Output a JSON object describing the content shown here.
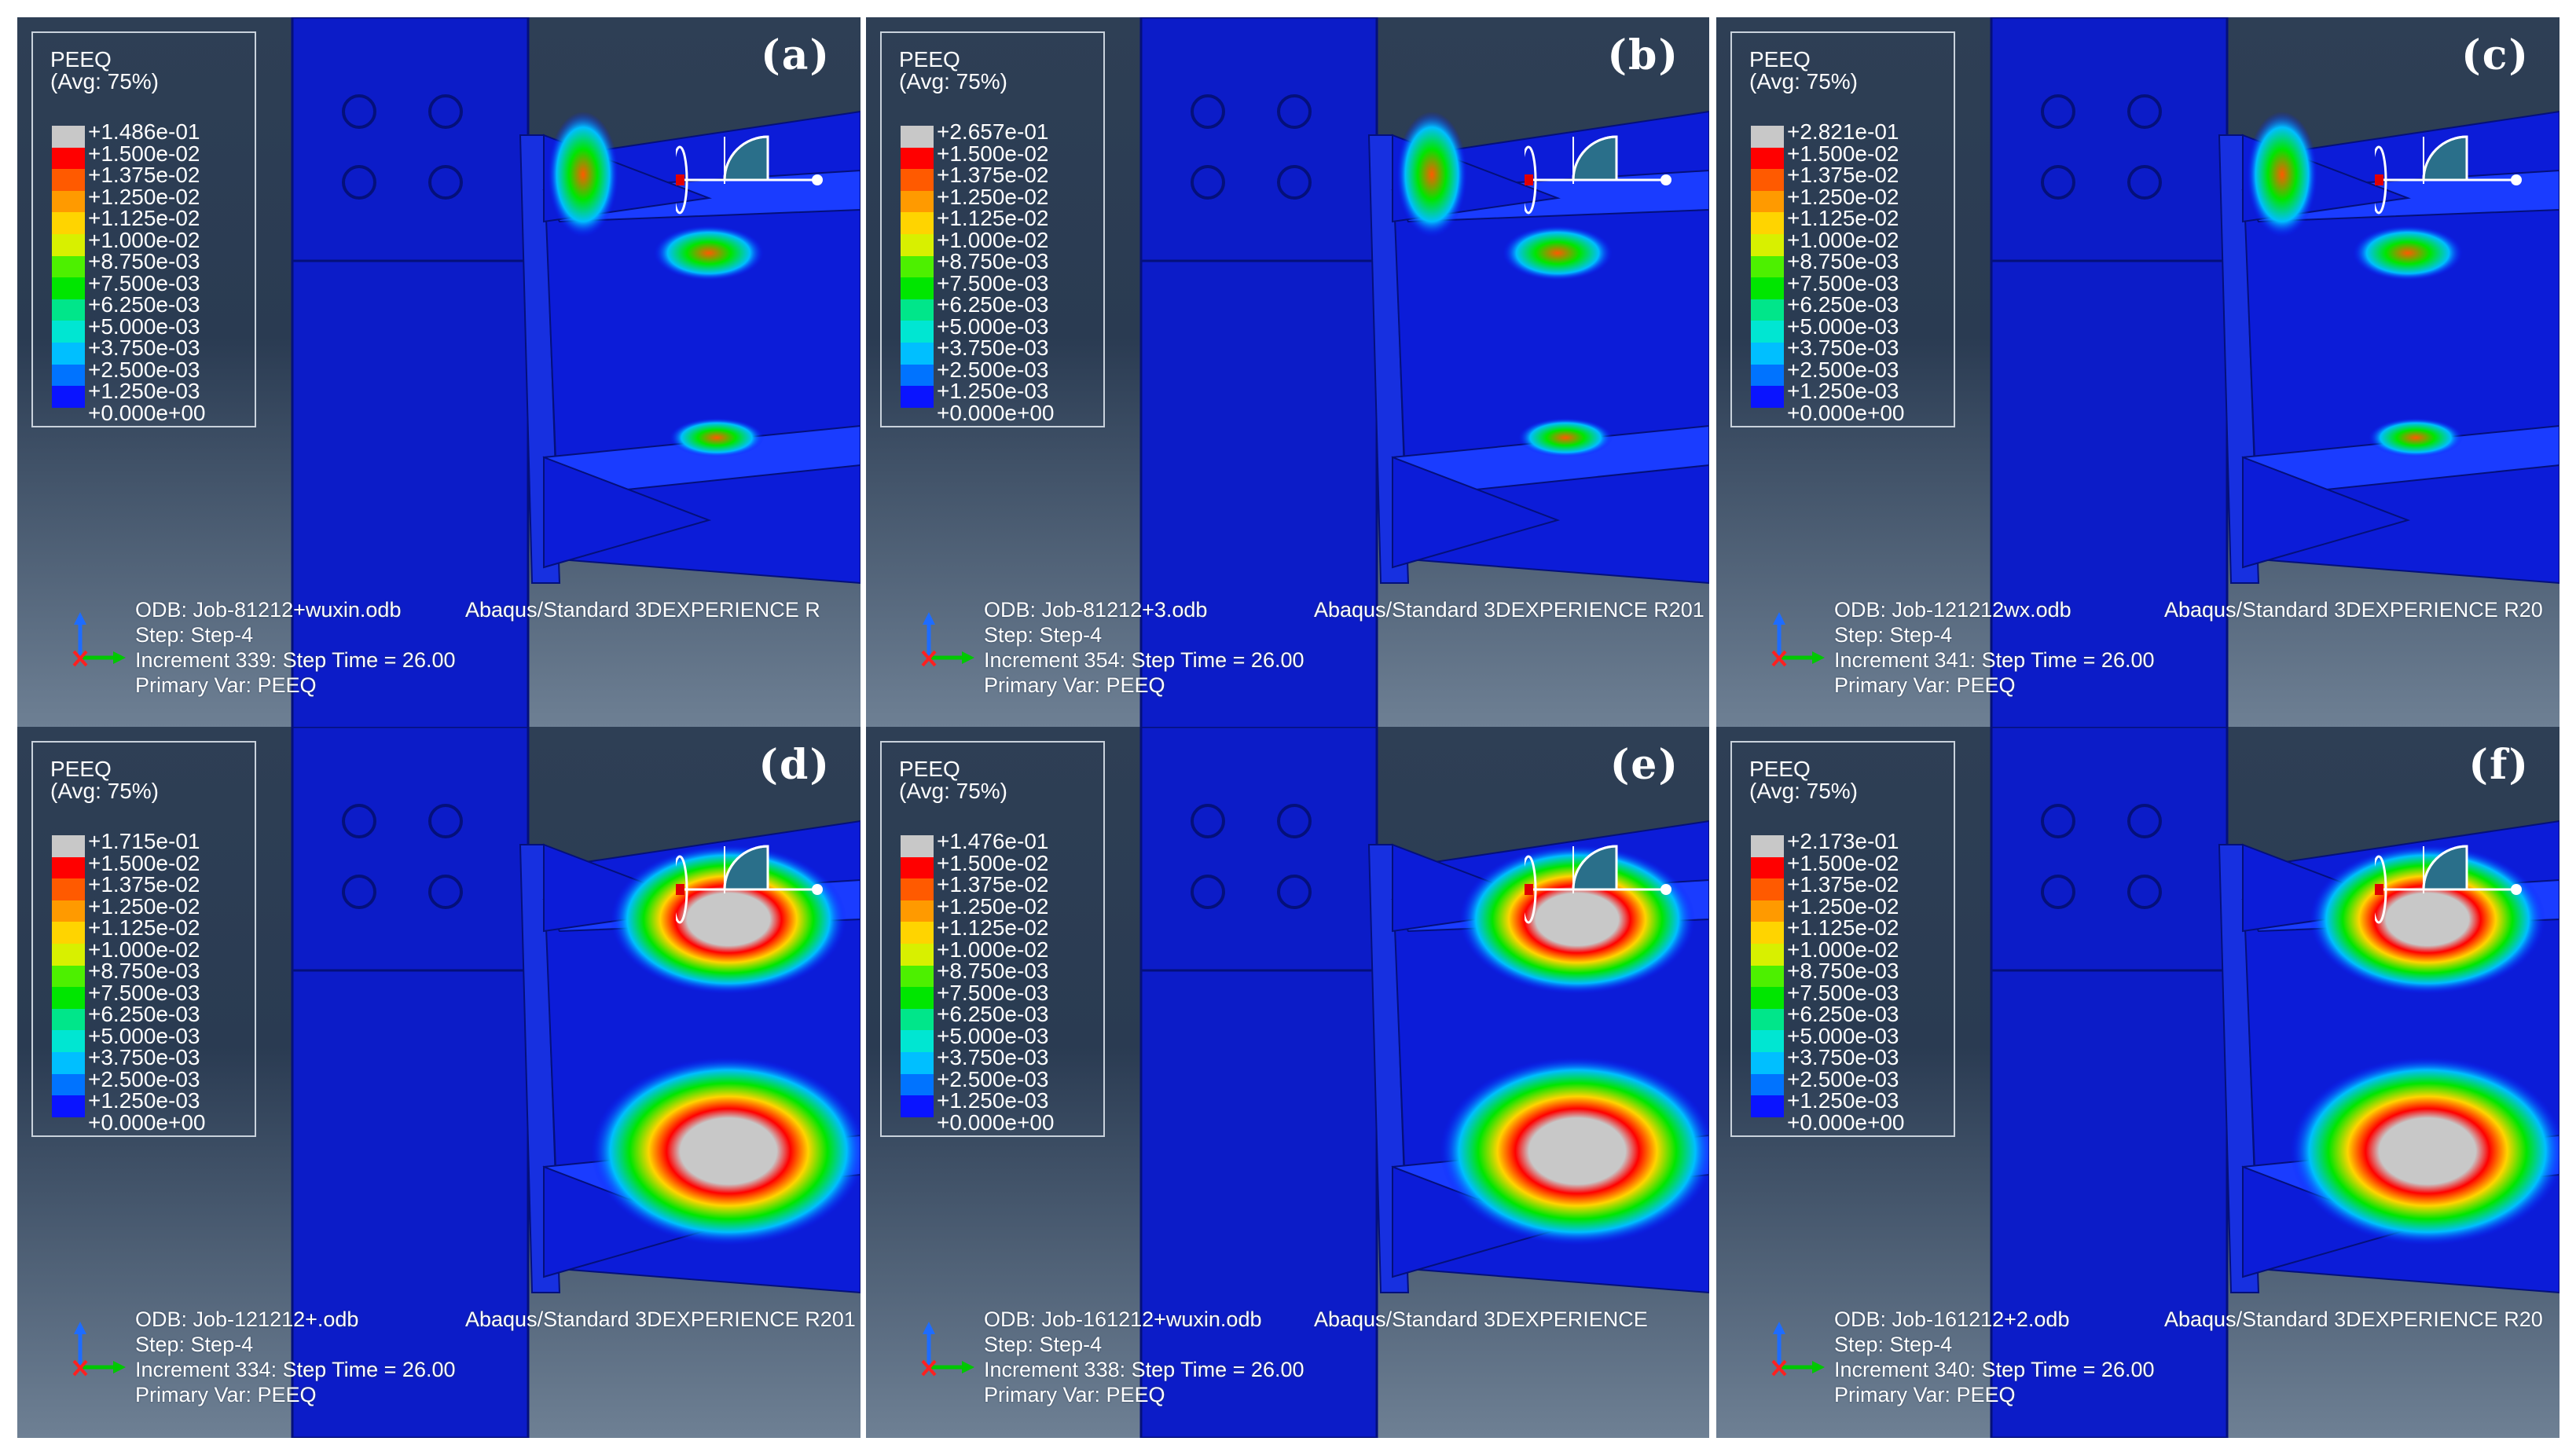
{
  "legend_title": "PEEQ",
  "legend_avg": "(Avg: 75%)",
  "legend_colors": [
    "#c8c8c8",
    "#ff0000",
    "#ff5a00",
    "#ff9a00",
    "#ffd400",
    "#d8f000",
    "#4df000",
    "#00e600",
    "#00e68a",
    "#00e6d2",
    "#00bfff",
    "#0073ff",
    "#0a14ff"
  ],
  "common_levels": [
    "+1.500e-02",
    "+1.375e-02",
    "+1.250e-02",
    "+1.125e-02",
    "+1.000e-02",
    "+8.750e-03",
    "+7.500e-03",
    "+6.250e-03",
    "+5.000e-03",
    "+3.750e-03",
    "+2.500e-03",
    "+1.250e-03",
    "+0.000e+00"
  ],
  "panels": [
    {
      "label": "(a)",
      "max": "+1.486e-01",
      "odb": "ODB: Job-81212+wuxin.odb",
      "solver": "Abaqus/Standard 3DEXPERIENCE R",
      "step": "Step: Step-4",
      "increment": "Increment    339: Step Time =    26.00",
      "primary": "Primary Var: PEEQ"
    },
    {
      "label": "(b)",
      "max": "+2.657e-01",
      "odb": "ODB: Job-81212+3.odb",
      "solver": "Abaqus/Standard 3DEXPERIENCE R201",
      "step": "Step: Step-4",
      "increment": "Increment    354: Step Time =    26.00",
      "primary": "Primary Var: PEEQ"
    },
    {
      "label": "(c)",
      "max": "+2.821e-01",
      "odb": "ODB: Job-121212wx.odb",
      "solver": "Abaqus/Standard 3DEXPERIENCE R20",
      "step": "Step: Step-4",
      "increment": "Increment    341: Step Time =    26.00",
      "primary": "Primary Var: PEEQ"
    },
    {
      "label": "(d)",
      "max": "+1.715e-01",
      "odb": "ODB: Job-121212+.odb",
      "solver": "Abaqus/Standard 3DEXPERIENCE R201",
      "step": "Step: Step-4",
      "increment": "Increment    334: Step Time =    26.00",
      "primary": "Primary Var: PEEQ"
    },
    {
      "label": "(e)",
      "max": "+1.476e-01",
      "odb": "ODB: Job-161212+wuxin.odb",
      "solver": "Abaqus/Standard 3DEXPERIENCE",
      "step": "Step: Step-4",
      "increment": "Increment    338: Step Time =    26.00",
      "primary": "Primary Var: PEEQ"
    },
    {
      "label": "(f)",
      "max": "+2.173e-01",
      "odb": "ODB: Job-161212+2.odb",
      "solver": "Abaqus/Standard 3DEXPERIENCE R20",
      "step": "Step: Step-4",
      "increment": "Increment    340: Step Time =    26.00",
      "primary": "Primary Var: PEEQ"
    }
  ]
}
